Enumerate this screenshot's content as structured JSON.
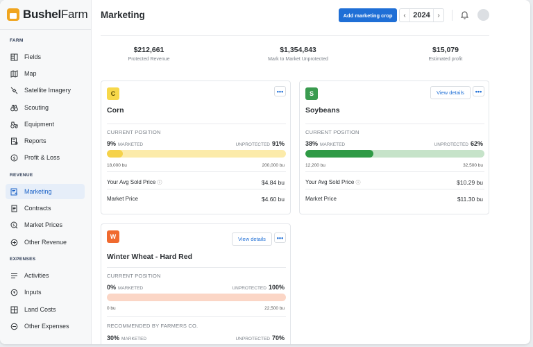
{
  "app": {
    "brand_bold": "Bushel",
    "brand_light": "Farm"
  },
  "sidebar": {
    "farm_header": "FARM",
    "farm_items": [
      {
        "label": "Fields",
        "icon": "fields-icon"
      },
      {
        "label": "Map",
        "icon": "map-icon"
      },
      {
        "label": "Satellite Imagery",
        "icon": "satellite-icon"
      },
      {
        "label": "Scouting",
        "icon": "binoculars-icon"
      },
      {
        "label": "Equipment",
        "icon": "tractor-icon"
      },
      {
        "label": "Reports",
        "icon": "report-icon"
      },
      {
        "label": "Profit & Loss",
        "icon": "dollar-icon"
      }
    ],
    "revenue_header": "REVENUE",
    "revenue_items": [
      {
        "label": "Marketing",
        "icon": "marketing-icon",
        "active": true
      },
      {
        "label": "Contracts",
        "icon": "contract-icon"
      },
      {
        "label": "Market Prices",
        "icon": "price-tag-icon"
      },
      {
        "label": "Other Revenue",
        "icon": "revenue-icon"
      }
    ],
    "expenses_header": "EXPENSES",
    "expense_items": [
      {
        "label": "Activities",
        "icon": "activities-icon"
      },
      {
        "label": "Inputs",
        "icon": "inputs-icon"
      },
      {
        "label": "Land Costs",
        "icon": "land-icon"
      },
      {
        "label": "Other Expenses",
        "icon": "expense-icon"
      }
    ]
  },
  "header": {
    "title": "Marketing",
    "add_button": "Add marketing crop",
    "year": "2024"
  },
  "summary": [
    {
      "value": "$212,661",
      "label": "Protected Revenue"
    },
    {
      "value": "$1,354,843",
      "label": "Mark to Market Unprotected"
    },
    {
      "value": "$15,079",
      "label": "Estimated profit"
    }
  ],
  "cards": {
    "corn": {
      "badge": "C",
      "badge_color": "#f7d84a",
      "name": "Corn",
      "current_position": "CURRENT POSITION",
      "marketed_pct": "9%",
      "marketed_label": "MARKETED",
      "unprotected_label": "UNPROTECTED",
      "unprotected_pct": "91%",
      "marketed_fraction": 0.09,
      "bar_color": "#f5d24a",
      "track_color": "#fcebaa",
      "bu_marketed": "18,000 bu",
      "bu_total": "200,000 bu",
      "avg_label": "Your Avg Sold Price",
      "avg_value": "$4.84 bu",
      "market_label": "Market Price",
      "market_value": "$4.60 bu"
    },
    "soybeans": {
      "badge": "S",
      "badge_color": "#3a9b4f",
      "name": "Soybeans",
      "view_details": "View details",
      "current_position": "CURRENT POSITION",
      "marketed_pct": "38%",
      "marketed_label": "MARKETED",
      "unprotected_label": "UNPROTECTED",
      "unprotected_pct": "62%",
      "marketed_fraction": 0.38,
      "bar_color": "#2f9a45",
      "track_color": "#c6e3c9",
      "bu_marketed": "12,200 bu",
      "bu_total": "32,500 bu",
      "avg_label": "Your Avg Sold Price",
      "avg_value": "$10.29 bu",
      "market_label": "Market Price",
      "market_value": "$11.30 bu"
    },
    "wheat": {
      "badge": "W",
      "badge_color": "#f06a2f",
      "name": "Winter Wheat - Hard Red",
      "view_details": "View details",
      "current_position": "CURRENT POSITION",
      "marketed_pct": "0%",
      "marketed_label": "MARKETED",
      "unprotected_label": "UNPROTECTED",
      "unprotected_pct": "100%",
      "marketed_fraction": 0,
      "track_color": "#fbd6c6",
      "bu_marketed": "0 bu",
      "bu_total": "22,500 bu",
      "recommended": "RECOMMENDED BY FARMERS CO.",
      "rec_marketed_pct": "30%",
      "rec_marketed_label": "MARKETED",
      "rec_unprotected_label": "UNPROTECTED",
      "rec_unprotected_pct": "70%"
    }
  }
}
